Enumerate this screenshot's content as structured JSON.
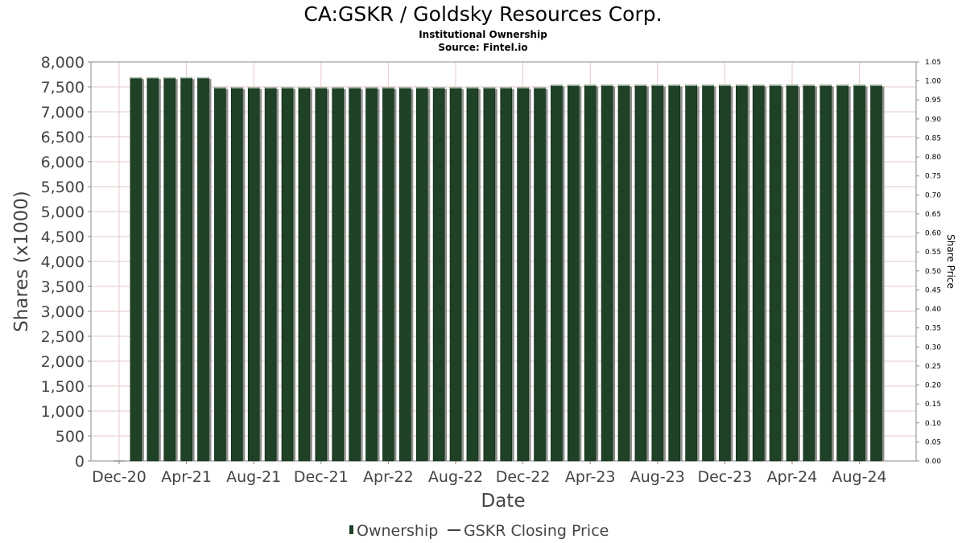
{
  "title": "CA:GSKR / Goldsky Resources Corp.",
  "subtitle1": "Institutional Ownership",
  "subtitle2": "Source: Fintel.io",
  "chart_data": {
    "type": "bar",
    "xlabel": "Date",
    "ylabel": "Shares (x1000)",
    "y2label": "Share Price",
    "ylim": [
      0,
      8000
    ],
    "y2lim": [
      0,
      1.05
    ],
    "yticks": [
      "0",
      "500",
      "1,000",
      "1,500",
      "2,000",
      "2,500",
      "3,000",
      "3,500",
      "4,000",
      "4,500",
      "5,000",
      "5,500",
      "6,000",
      "6,500",
      "7,000",
      "7,500",
      "8,000"
    ],
    "y2ticks": [
      "0.00",
      "0.05",
      "0.10",
      "0.15",
      "0.20",
      "0.25",
      "0.30",
      "0.35",
      "0.40",
      "0.45",
      "0.50",
      "0.55",
      "0.60",
      "0.65",
      "0.70",
      "0.75",
      "0.80",
      "0.85",
      "0.90",
      "0.95",
      "1.00",
      "1.05"
    ],
    "xticks": [
      "Dec-20",
      "Apr-21",
      "Aug-21",
      "Dec-21",
      "Apr-22",
      "Aug-22",
      "Dec-22",
      "Apr-23",
      "Aug-23",
      "Dec-23",
      "Apr-24",
      "Aug-24"
    ],
    "grid": true,
    "legend_position": "bottom",
    "series": [
      {
        "name": "Ownership",
        "color": "#1f4126",
        "values": [
          0,
          7690,
          7690,
          7690,
          7690,
          7690,
          7490,
          7490,
          7490,
          7490,
          7490,
          7490,
          7490,
          7490,
          7490,
          7490,
          7490,
          7490,
          7490,
          7490,
          7490,
          7490,
          7490,
          7490,
          7490,
          7490,
          7540,
          7540,
          7540,
          7540,
          7540,
          7540,
          7540,
          7540,
          7540,
          7540,
          7540,
          7540,
          7540,
          7540,
          7540,
          7540,
          7540,
          7540,
          7540,
          7540
        ]
      },
      {
        "name": "GSKR Closing Price",
        "color": "#444444",
        "values": []
      }
    ]
  }
}
